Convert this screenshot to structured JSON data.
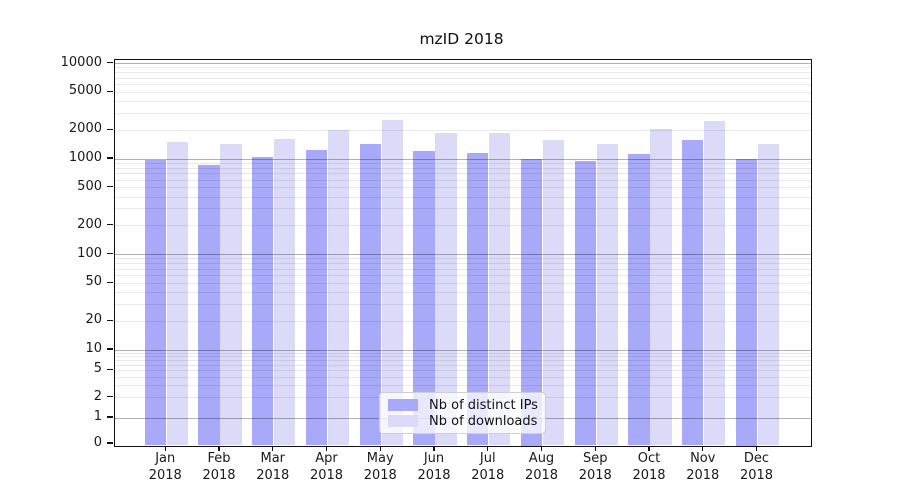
{
  "chart_data": {
    "type": "bar",
    "title": "mzID 2018",
    "categories": [
      "Jan",
      "Feb",
      "Mar",
      "Apr",
      "May",
      "Jun",
      "Jul",
      "Aug",
      "Sep",
      "Oct",
      "Nov",
      "Dec"
    ],
    "x_year_label": "2018",
    "series": [
      {
        "name": "Nb of distinct IPs",
        "color": "#a9a9fa",
        "values": [
          980,
          870,
          1050,
          1230,
          1430,
          1220,
          1150,
          1000,
          950,
          1140,
          1600,
          1000
        ]
      },
      {
        "name": "Nb of downloads",
        "color": "#dbdbf9",
        "values": [
          1500,
          1430,
          1620,
          2000,
          2550,
          1850,
          1850,
          1570,
          1430,
          2050,
          2500,
          1420
        ]
      }
    ],
    "y_ticks": [
      0,
      1,
      2,
      5,
      10,
      20,
      50,
      100,
      200,
      500,
      1000,
      2000,
      5000,
      10000
    ],
    "y_scale": "symlog",
    "ylim": [
      0,
      10000
    ],
    "grid": true,
    "legend_position": "lower center",
    "background_color": "#ffffff"
  }
}
